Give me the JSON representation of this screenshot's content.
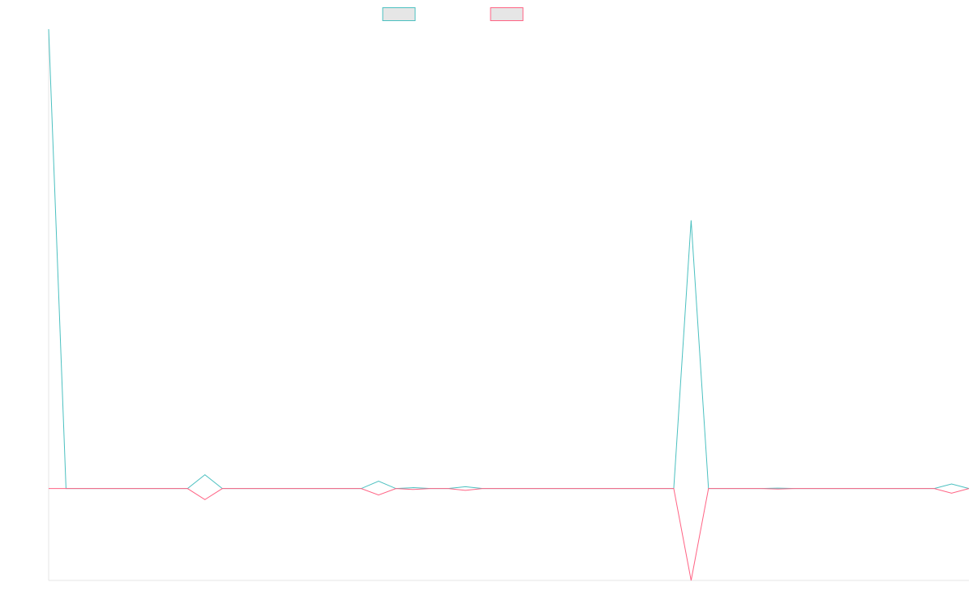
{
  "chart_data": {
    "type": "line",
    "title": "",
    "xlabel": "",
    "ylabel": "",
    "legend_position": "top-center",
    "grid": false,
    "x_points": 54,
    "ylim": [
      -10,
      50
    ],
    "series": [
      {
        "legend_label": "",
        "color": "#4bc0c0",
        "fill": "#e6e6e6",
        "values": [
          50,
          0,
          0,
          0,
          0,
          0,
          0,
          0,
          0,
          1.5,
          0,
          0,
          0,
          0,
          0,
          0,
          0,
          0,
          0,
          0.8,
          0,
          0.1,
          0,
          0,
          0.2,
          0,
          0,
          0,
          0,
          0,
          0,
          0,
          0,
          0,
          0,
          0,
          0,
          29.2,
          0,
          0,
          0,
          0,
          0.05,
          0,
          0,
          0,
          0,
          0,
          0,
          0,
          0,
          0,
          0.5,
          0
        ]
      },
      {
        "legend_label": "",
        "color": "#ff6384",
        "fill": "#e6e6e6",
        "values": [
          0,
          0,
          0,
          0,
          0,
          0,
          0,
          0,
          0,
          -1.2,
          0,
          0,
          0,
          0,
          0,
          0,
          0,
          0,
          0,
          -0.7,
          0,
          -0.1,
          0,
          0,
          -0.2,
          0,
          0,
          0,
          0,
          0,
          0,
          0,
          0,
          0,
          0,
          0,
          0,
          -10,
          0,
          0,
          0,
          0,
          -0.05,
          0,
          0,
          0,
          0,
          0,
          0,
          0,
          0,
          0,
          -0.5,
          0
        ]
      }
    ]
  }
}
